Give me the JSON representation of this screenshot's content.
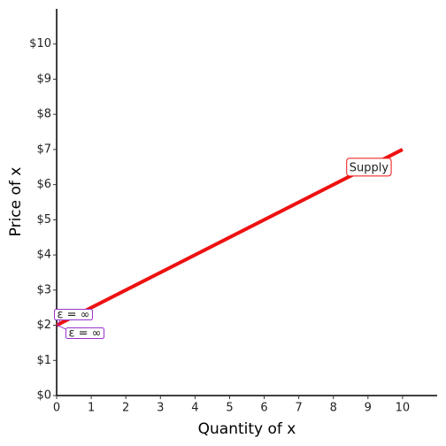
{
  "chart_data": {
    "type": "line",
    "x_label": "Quantity of x",
    "y_label": "Price of x",
    "x": [
      0,
      10
    ],
    "series": [
      {
        "name": "Supply",
        "color": "#ee1111",
        "values": [
          2,
          7
        ]
      }
    ],
    "xlim": [
      0,
      11
    ],
    "ylim": [
      0,
      11
    ],
    "xticks": [
      0,
      1,
      2,
      3,
      4,
      5,
      6,
      7,
      8,
      9,
      10
    ],
    "yticks": [
      {
        "value": 0,
        "label": "$0"
      },
      {
        "value": 1,
        "label": "$1"
      },
      {
        "value": 2,
        "label": "$2"
      },
      {
        "value": 3,
        "label": "$3"
      },
      {
        "value": 4,
        "label": "$4"
      },
      {
        "value": 5,
        "label": "$5"
      },
      {
        "value": 6,
        "label": "$6"
      },
      {
        "value": 7,
        "label": "$7"
      },
      {
        "value": 8,
        "label": "$8"
      },
      {
        "value": 9,
        "label": "$9"
      },
      {
        "value": 10,
        "label": "$10"
      }
    ],
    "annotations": [
      "ε = ∞",
      "ε = ∞"
    ],
    "annotation_color": "#9933cc",
    "grid": false
  }
}
